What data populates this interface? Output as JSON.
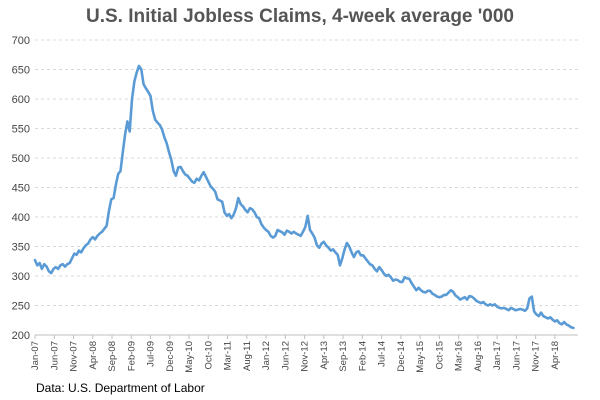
{
  "chart_data": {
    "type": "line",
    "title": "U.S. Initial Jobless Claims,  4-week average '000",
    "xlabel": "",
    "ylabel": "",
    "ylim": [
      200,
      700
    ],
    "yticks": [
      200,
      250,
      300,
      350,
      400,
      450,
      500,
      550,
      600,
      650,
      700
    ],
    "x_range": [
      2007.0,
      2018.75
    ],
    "x_tick_labels": [
      {
        "label": "Jan-07",
        "t": 2007.0
      },
      {
        "label": "Jun-07",
        "t": 2007.4167
      },
      {
        "label": "Nov-07",
        "t": 2007.8333
      },
      {
        "label": "Apr-08",
        "t": 2008.25
      },
      {
        "label": "Sep-08",
        "t": 2008.6667
      },
      {
        "label": "Feb-09",
        "t": 2009.0833
      },
      {
        "label": "Jul-09",
        "t": 2009.5
      },
      {
        "label": "Dec-09",
        "t": 2009.9167
      },
      {
        "label": "May-10",
        "t": 2010.3333
      },
      {
        "label": "Oct-10",
        "t": 2010.75
      },
      {
        "label": "Mar-11",
        "t": 2011.1667
      },
      {
        "label": "Aug-11",
        "t": 2011.5833
      },
      {
        "label": "Jan-12",
        "t": 2012.0
      },
      {
        "label": "Jun-12",
        "t": 2012.4167
      },
      {
        "label": "Nov-12",
        "t": 2012.8333
      },
      {
        "label": "Apr-13",
        "t": 2013.25
      },
      {
        "label": "Sep-13",
        "t": 2013.6667
      },
      {
        "label": "Feb-14",
        "t": 2014.0833
      },
      {
        "label": "Jul-14",
        "t": 2014.5
      },
      {
        "label": "Dec-14",
        "t": 2014.9167
      },
      {
        "label": "May-15",
        "t": 2015.3333
      },
      {
        "label": "Oct-15",
        "t": 2015.75
      },
      {
        "label": "Mar-16",
        "t": 2016.1667
      },
      {
        "label": "Aug-16",
        "t": 2016.5833
      },
      {
        "label": "Jan-17",
        "t": 2017.0
      },
      {
        "label": "Jun-17",
        "t": 2017.4167
      },
      {
        "label": "Nov-17",
        "t": 2017.8333
      },
      {
        "label": "Apr-18",
        "t": 2018.25
      }
    ],
    "series": [
      {
        "name": "Initial Jobless Claims, 4-week average ('000)",
        "color": "#5b9bd5",
        "points": [
          [
            2007.0,
            327
          ],
          [
            2007.05,
            318
          ],
          [
            2007.1,
            322
          ],
          [
            2007.15,
            312
          ],
          [
            2007.2,
            320
          ],
          [
            2007.25,
            316
          ],
          [
            2007.3,
            308
          ],
          [
            2007.35,
            305
          ],
          [
            2007.4,
            312
          ],
          [
            2007.45,
            315
          ],
          [
            2007.5,
            312
          ],
          [
            2007.55,
            318
          ],
          [
            2007.6,
            320
          ],
          [
            2007.65,
            316
          ],
          [
            2007.7,
            320
          ],
          [
            2007.75,
            322
          ],
          [
            2007.8,
            330
          ],
          [
            2007.85,
            338
          ],
          [
            2007.9,
            336
          ],
          [
            2007.95,
            343
          ],
          [
            2008.0,
            340
          ],
          [
            2008.05,
            347
          ],
          [
            2008.1,
            352
          ],
          [
            2008.15,
            355
          ],
          [
            2008.2,
            362
          ],
          [
            2008.25,
            366
          ],
          [
            2008.3,
            362
          ],
          [
            2008.35,
            368
          ],
          [
            2008.4,
            372
          ],
          [
            2008.45,
            375
          ],
          [
            2008.5,
            380
          ],
          [
            2008.55,
            385
          ],
          [
            2008.6,
            410
          ],
          [
            2008.65,
            430
          ],
          [
            2008.7,
            432
          ],
          [
            2008.75,
            455
          ],
          [
            2008.8,
            473
          ],
          [
            2008.85,
            478
          ],
          [
            2008.9,
            510
          ],
          [
            2008.95,
            540
          ],
          [
            2009.0,
            562
          ],
          [
            2009.05,
            545
          ],
          [
            2009.1,
            600
          ],
          [
            2009.15,
            630
          ],
          [
            2009.2,
            645
          ],
          [
            2009.25,
            656
          ],
          [
            2009.3,
            650
          ],
          [
            2009.35,
            625
          ],
          [
            2009.4,
            618
          ],
          [
            2009.45,
            612
          ],
          [
            2009.5,
            605
          ],
          [
            2009.55,
            580
          ],
          [
            2009.6,
            565
          ],
          [
            2009.65,
            560
          ],
          [
            2009.7,
            556
          ],
          [
            2009.75,
            548
          ],
          [
            2009.8,
            535
          ],
          [
            2009.85,
            525
          ],
          [
            2009.9,
            510
          ],
          [
            2009.95,
            497
          ],
          [
            2010.0,
            478
          ],
          [
            2010.05,
            470
          ],
          [
            2010.1,
            484
          ],
          [
            2010.15,
            485
          ],
          [
            2010.2,
            478
          ],
          [
            2010.25,
            472
          ],
          [
            2010.3,
            470
          ],
          [
            2010.35,
            465
          ],
          [
            2010.4,
            460
          ],
          [
            2010.45,
            458
          ],
          [
            2010.5,
            465
          ],
          [
            2010.55,
            462
          ],
          [
            2010.6,
            470
          ],
          [
            2010.65,
            476
          ],
          [
            2010.7,
            468
          ],
          [
            2010.75,
            460
          ],
          [
            2010.8,
            452
          ],
          [
            2010.85,
            448
          ],
          [
            2010.9,
            443
          ],
          [
            2010.95,
            430
          ],
          [
            2011.0,
            428
          ],
          [
            2011.05,
            426
          ],
          [
            2011.1,
            408
          ],
          [
            2011.15,
            402
          ],
          [
            2011.2,
            405
          ],
          [
            2011.25,
            398
          ],
          [
            2011.3,
            404
          ],
          [
            2011.35,
            415
          ],
          [
            2011.4,
            432
          ],
          [
            2011.45,
            422
          ],
          [
            2011.5,
            418
          ],
          [
            2011.55,
            412
          ],
          [
            2011.6,
            408
          ],
          [
            2011.65,
            415
          ],
          [
            2011.7,
            413
          ],
          [
            2011.75,
            408
          ],
          [
            2011.8,
            400
          ],
          [
            2011.85,
            398
          ],
          [
            2011.9,
            388
          ],
          [
            2011.95,
            382
          ],
          [
            2012.0,
            378
          ],
          [
            2012.05,
            375
          ],
          [
            2012.1,
            368
          ],
          [
            2012.15,
            365
          ],
          [
            2012.2,
            368
          ],
          [
            2012.25,
            378
          ],
          [
            2012.3,
            376
          ],
          [
            2012.35,
            374
          ],
          [
            2012.4,
            370
          ],
          [
            2012.45,
            377
          ],
          [
            2012.5,
            375
          ],
          [
            2012.55,
            372
          ],
          [
            2012.6,
            375
          ],
          [
            2012.65,
            372
          ],
          [
            2012.7,
            370
          ],
          [
            2012.75,
            368
          ],
          [
            2012.8,
            375
          ],
          [
            2012.85,
            383
          ],
          [
            2012.9,
            402
          ],
          [
            2012.95,
            378
          ],
          [
            2013.0,
            372
          ],
          [
            2013.05,
            365
          ],
          [
            2013.1,
            352
          ],
          [
            2013.15,
            348
          ],
          [
            2013.2,
            355
          ],
          [
            2013.25,
            358
          ],
          [
            2013.3,
            352
          ],
          [
            2013.35,
            348
          ],
          [
            2013.4,
            343
          ],
          [
            2013.45,
            345
          ],
          [
            2013.5,
            340
          ],
          [
            2013.55,
            336
          ],
          [
            2013.6,
            318
          ],
          [
            2013.65,
            330
          ],
          [
            2013.7,
            345
          ],
          [
            2013.75,
            356
          ],
          [
            2013.8,
            350
          ],
          [
            2013.85,
            340
          ],
          [
            2013.9,
            332
          ],
          [
            2013.95,
            340
          ],
          [
            2014.0,
            342
          ],
          [
            2014.05,
            335
          ],
          [
            2014.1,
            335
          ],
          [
            2014.15,
            330
          ],
          [
            2014.2,
            325
          ],
          [
            2014.25,
            320
          ],
          [
            2014.3,
            318
          ],
          [
            2014.35,
            312
          ],
          [
            2014.4,
            308
          ],
          [
            2014.45,
            315
          ],
          [
            2014.5,
            310
          ],
          [
            2014.55,
            304
          ],
          [
            2014.6,
            300
          ],
          [
            2014.65,
            302
          ],
          [
            2014.7,
            298
          ],
          [
            2014.75,
            292
          ],
          [
            2014.8,
            294
          ],
          [
            2014.85,
            293
          ],
          [
            2014.9,
            290
          ],
          [
            2014.95,
            290
          ],
          [
            2015.0,
            298
          ],
          [
            2015.05,
            296
          ],
          [
            2015.1,
            295
          ],
          [
            2015.15,
            288
          ],
          [
            2015.2,
            282
          ],
          [
            2015.25,
            276
          ],
          [
            2015.3,
            280
          ],
          [
            2015.35,
            276
          ],
          [
            2015.4,
            273
          ],
          [
            2015.45,
            272
          ],
          [
            2015.5,
            275
          ],
          [
            2015.55,
            275
          ],
          [
            2015.6,
            270
          ],
          [
            2015.65,
            268
          ],
          [
            2015.7,
            265
          ],
          [
            2015.75,
            264
          ],
          [
            2015.8,
            265
          ],
          [
            2015.85,
            268
          ],
          [
            2015.9,
            268
          ],
          [
            2015.95,
            272
          ],
          [
            2016.0,
            276
          ],
          [
            2016.05,
            273
          ],
          [
            2016.1,
            267
          ],
          [
            2016.15,
            264
          ],
          [
            2016.2,
            260
          ],
          [
            2016.25,
            262
          ],
          [
            2016.3,
            264
          ],
          [
            2016.35,
            260
          ],
          [
            2016.4,
            266
          ],
          [
            2016.45,
            265
          ],
          [
            2016.5,
            262
          ],
          [
            2016.55,
            258
          ],
          [
            2016.6,
            256
          ],
          [
            2016.65,
            254
          ],
          [
            2016.7,
            256
          ],
          [
            2016.75,
            252
          ],
          [
            2016.8,
            250
          ],
          [
            2016.85,
            252
          ],
          [
            2016.9,
            250
          ],
          [
            2016.95,
            252
          ],
          [
            2017.0,
            248
          ],
          [
            2017.05,
            246
          ],
          [
            2017.1,
            245
          ],
          [
            2017.15,
            246
          ],
          [
            2017.2,
            244
          ],
          [
            2017.25,
            242
          ],
          [
            2017.3,
            246
          ],
          [
            2017.35,
            244
          ],
          [
            2017.4,
            242
          ],
          [
            2017.45,
            243
          ],
          [
            2017.5,
            244
          ],
          [
            2017.55,
            243
          ],
          [
            2017.6,
            241
          ],
          [
            2017.65,
            245
          ],
          [
            2017.7,
            262
          ],
          [
            2017.75,
            265
          ],
          [
            2017.8,
            240
          ],
          [
            2017.85,
            235
          ],
          [
            2017.9,
            232
          ],
          [
            2017.95,
            238
          ],
          [
            2018.0,
            232
          ],
          [
            2018.05,
            230
          ],
          [
            2018.1,
            228
          ],
          [
            2018.15,
            230
          ],
          [
            2018.2,
            226
          ],
          [
            2018.25,
            223
          ],
          [
            2018.3,
            225
          ],
          [
            2018.35,
            220
          ],
          [
            2018.4,
            218
          ],
          [
            2018.45,
            222
          ],
          [
            2018.5,
            218
          ],
          [
            2018.55,
            216
          ],
          [
            2018.6,
            213
          ],
          [
            2018.65,
            212
          ]
        ]
      }
    ],
    "source": "Data: U.S. Department of Labor"
  }
}
